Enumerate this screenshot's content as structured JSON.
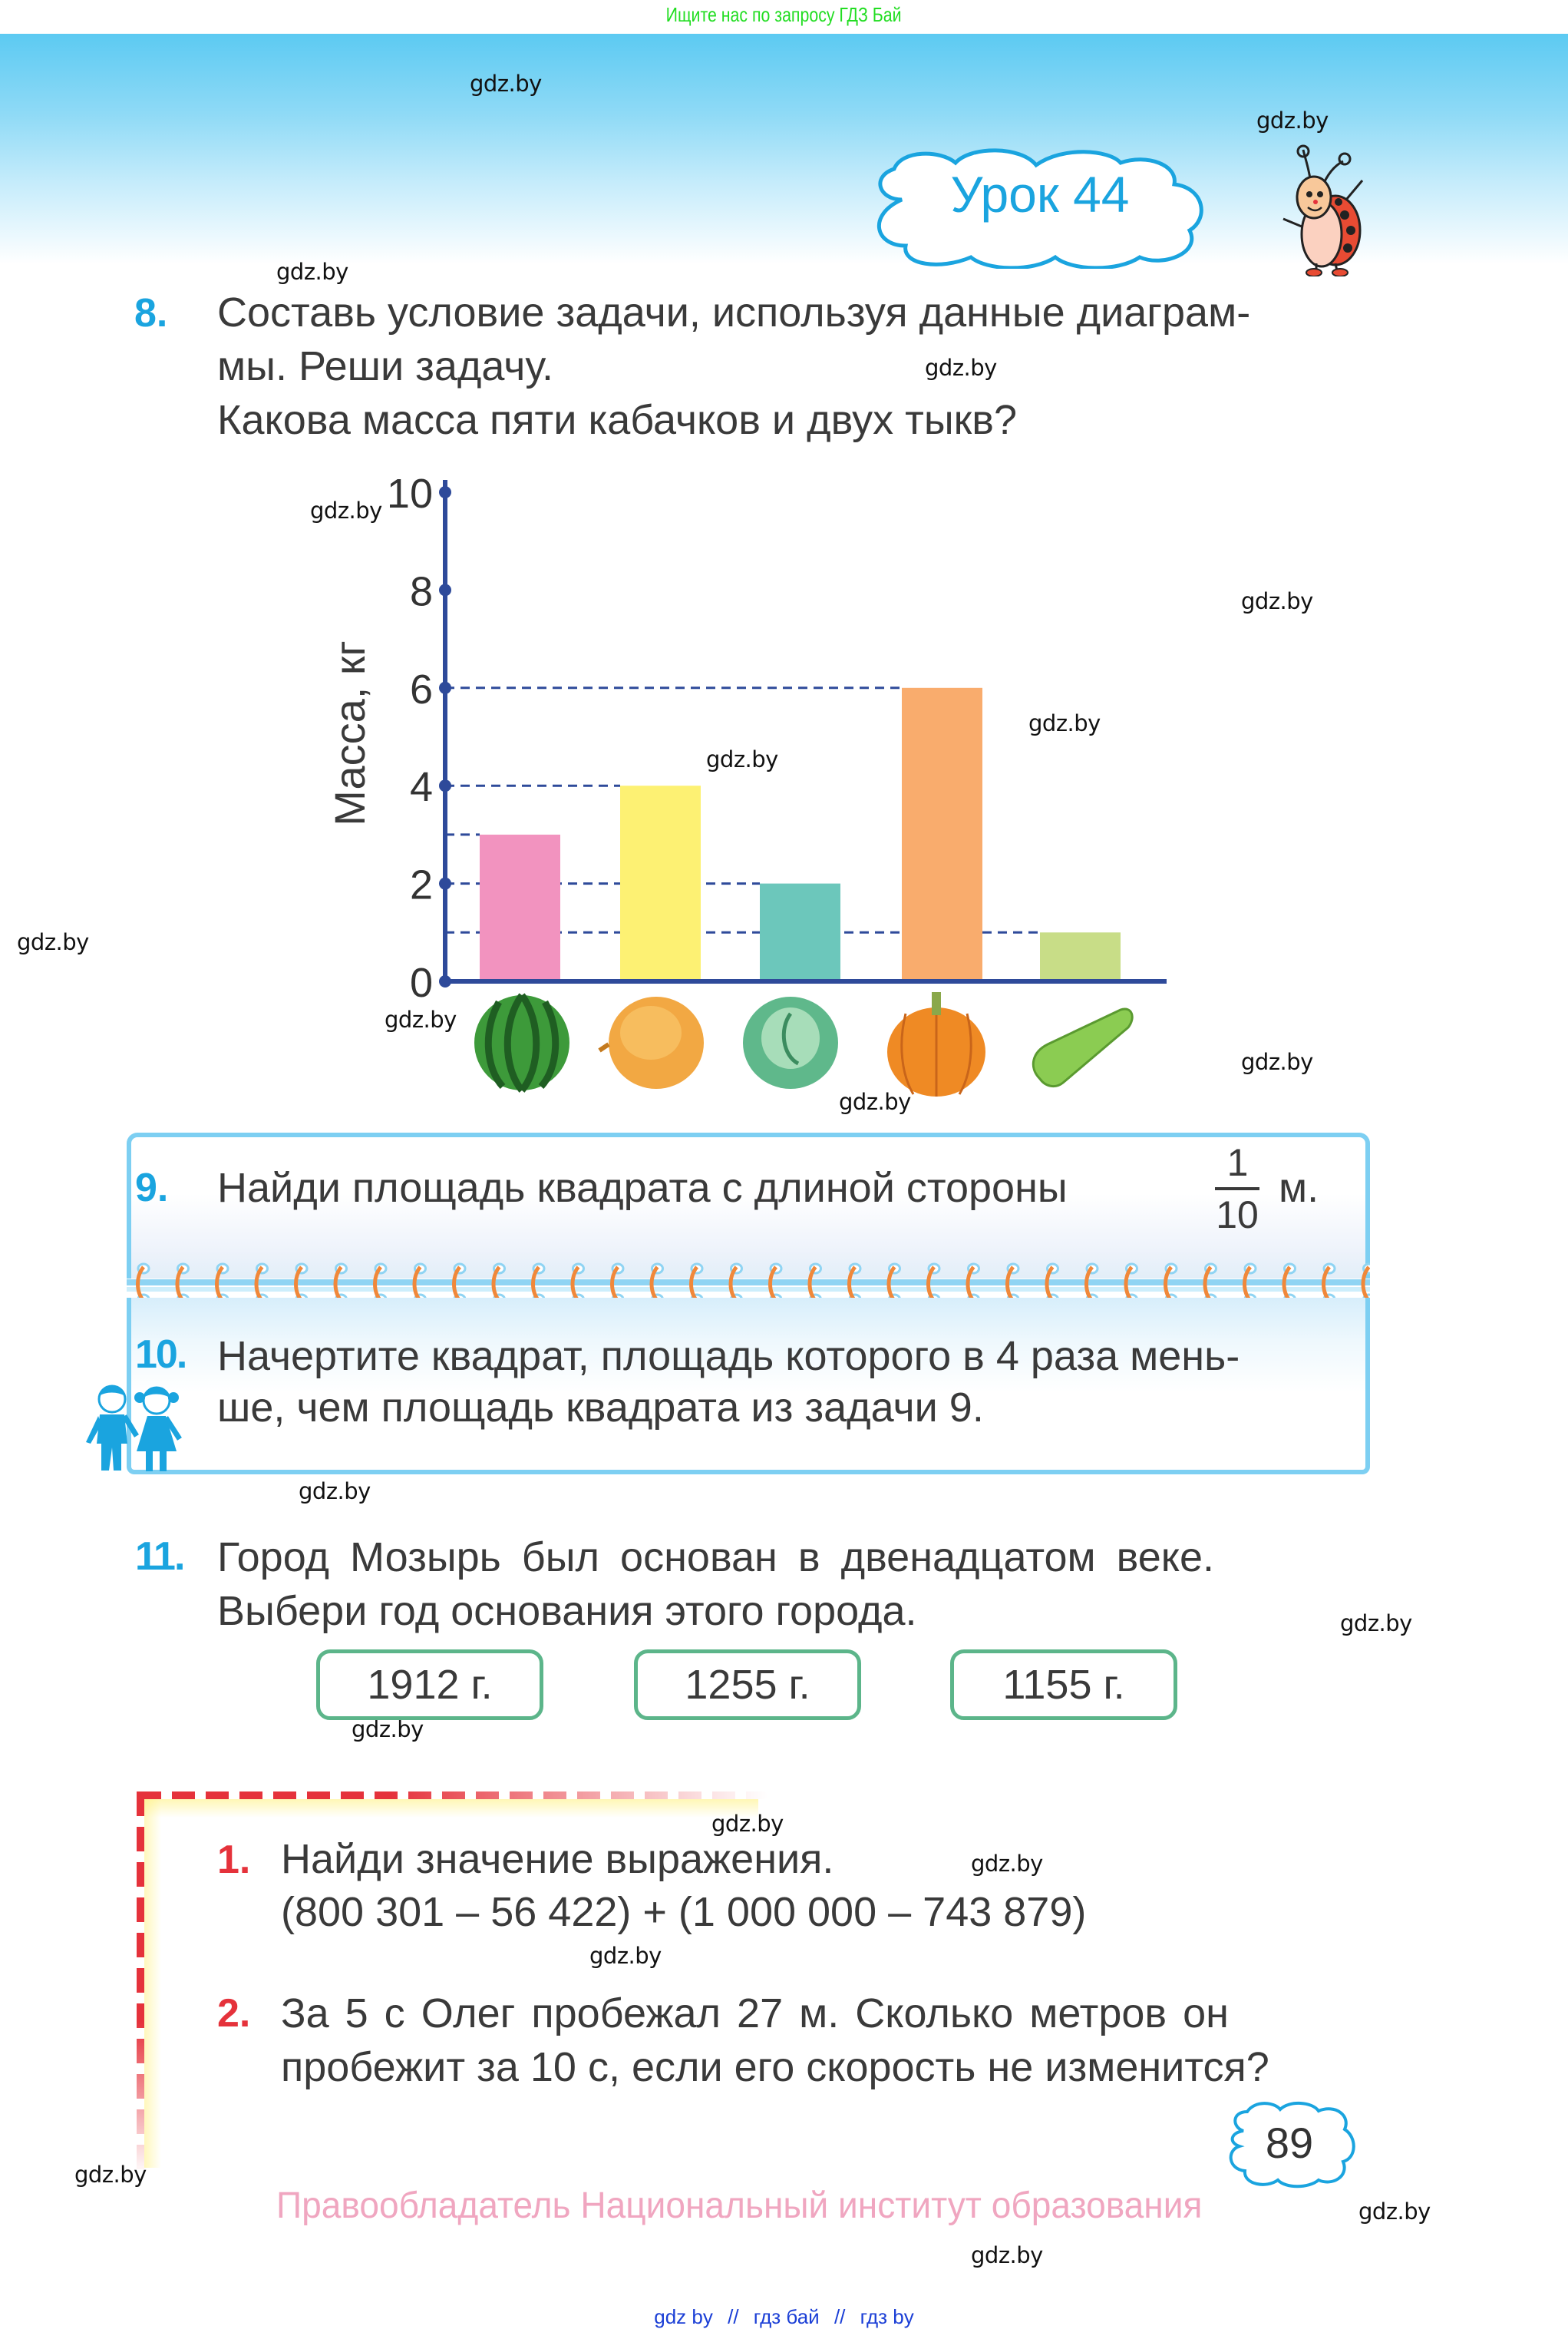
{
  "top_banner": {
    "text": "Ищите нас по запросу ГДЗ Бай",
    "color": "#22dd22"
  },
  "header": {
    "lesson_title": "Урок 44",
    "accent_color": "#1aa4df"
  },
  "watermark": "gdz.by",
  "tasks": {
    "t8": {
      "number": "8.",
      "lines": [
        "Составь условие задачи, используя данные диаграм-",
        "мы. Реши задачу.",
        "Какова масса пяти кабачков и двух тыкв?"
      ]
    },
    "t9": {
      "number": "9.",
      "text": "Найди площадь квадрата с длиной стороны",
      "fraction_num": "1",
      "fraction_den": "10",
      "unit": "м."
    },
    "t10": {
      "number": "10.",
      "lines": [
        "Начертите квадрат, площадь которого в 4 раза мень-",
        "ше, чем площадь квадрата из задачи 9."
      ]
    },
    "t11": {
      "number": "11.",
      "lines": [
        "Город  Мозырь  был  основан  в  двенадцатом  веке.",
        "Выбери год основания этого города."
      ],
      "options": [
        "1912 г.",
        "1255 г.",
        "1155 г."
      ]
    }
  },
  "review": {
    "r1": {
      "number": "1.",
      "title": "Найди значение выражения.",
      "expression": "(800 301 – 56 422) + (1 000 000 – 743 879)"
    },
    "r2": {
      "number": "2.",
      "lines": [
        "За 5 с Олег пробежал 27 м. Сколько метров он",
        "пробежит за 10 с, если его скорость не изменится?"
      ]
    }
  },
  "page_number": "89",
  "copyright": "Правообладатель Национальный институт образования",
  "bottom_links": [
    "gdz by",
    "//",
    "гдз бай",
    "//",
    "гдз by"
  ],
  "chart_data": {
    "type": "bar",
    "title": "",
    "xlabel": "",
    "ylabel": "Масса, кг",
    "categories": [
      "арбуз",
      "дыня",
      "капуста",
      "тыква",
      "кабачок"
    ],
    "category_icons": [
      "watermelon-icon",
      "melon-icon",
      "cabbage-icon",
      "pumpkin-icon",
      "zucchini-icon"
    ],
    "values": [
      3,
      4,
      2,
      6,
      1
    ],
    "colors": [
      "#f293bf",
      "#fdf173",
      "#6cc7bb",
      "#f9ac6d",
      "#c8dd87"
    ],
    "ylim": [
      0,
      10
    ],
    "yticks": [
      "0",
      "2",
      "4",
      "6",
      "8",
      "10"
    ],
    "grid": "dashed guide lines at bar heights 1, 2, 3, 4, 6",
    "axis_color": "#2e4a9a",
    "legend": "none"
  }
}
